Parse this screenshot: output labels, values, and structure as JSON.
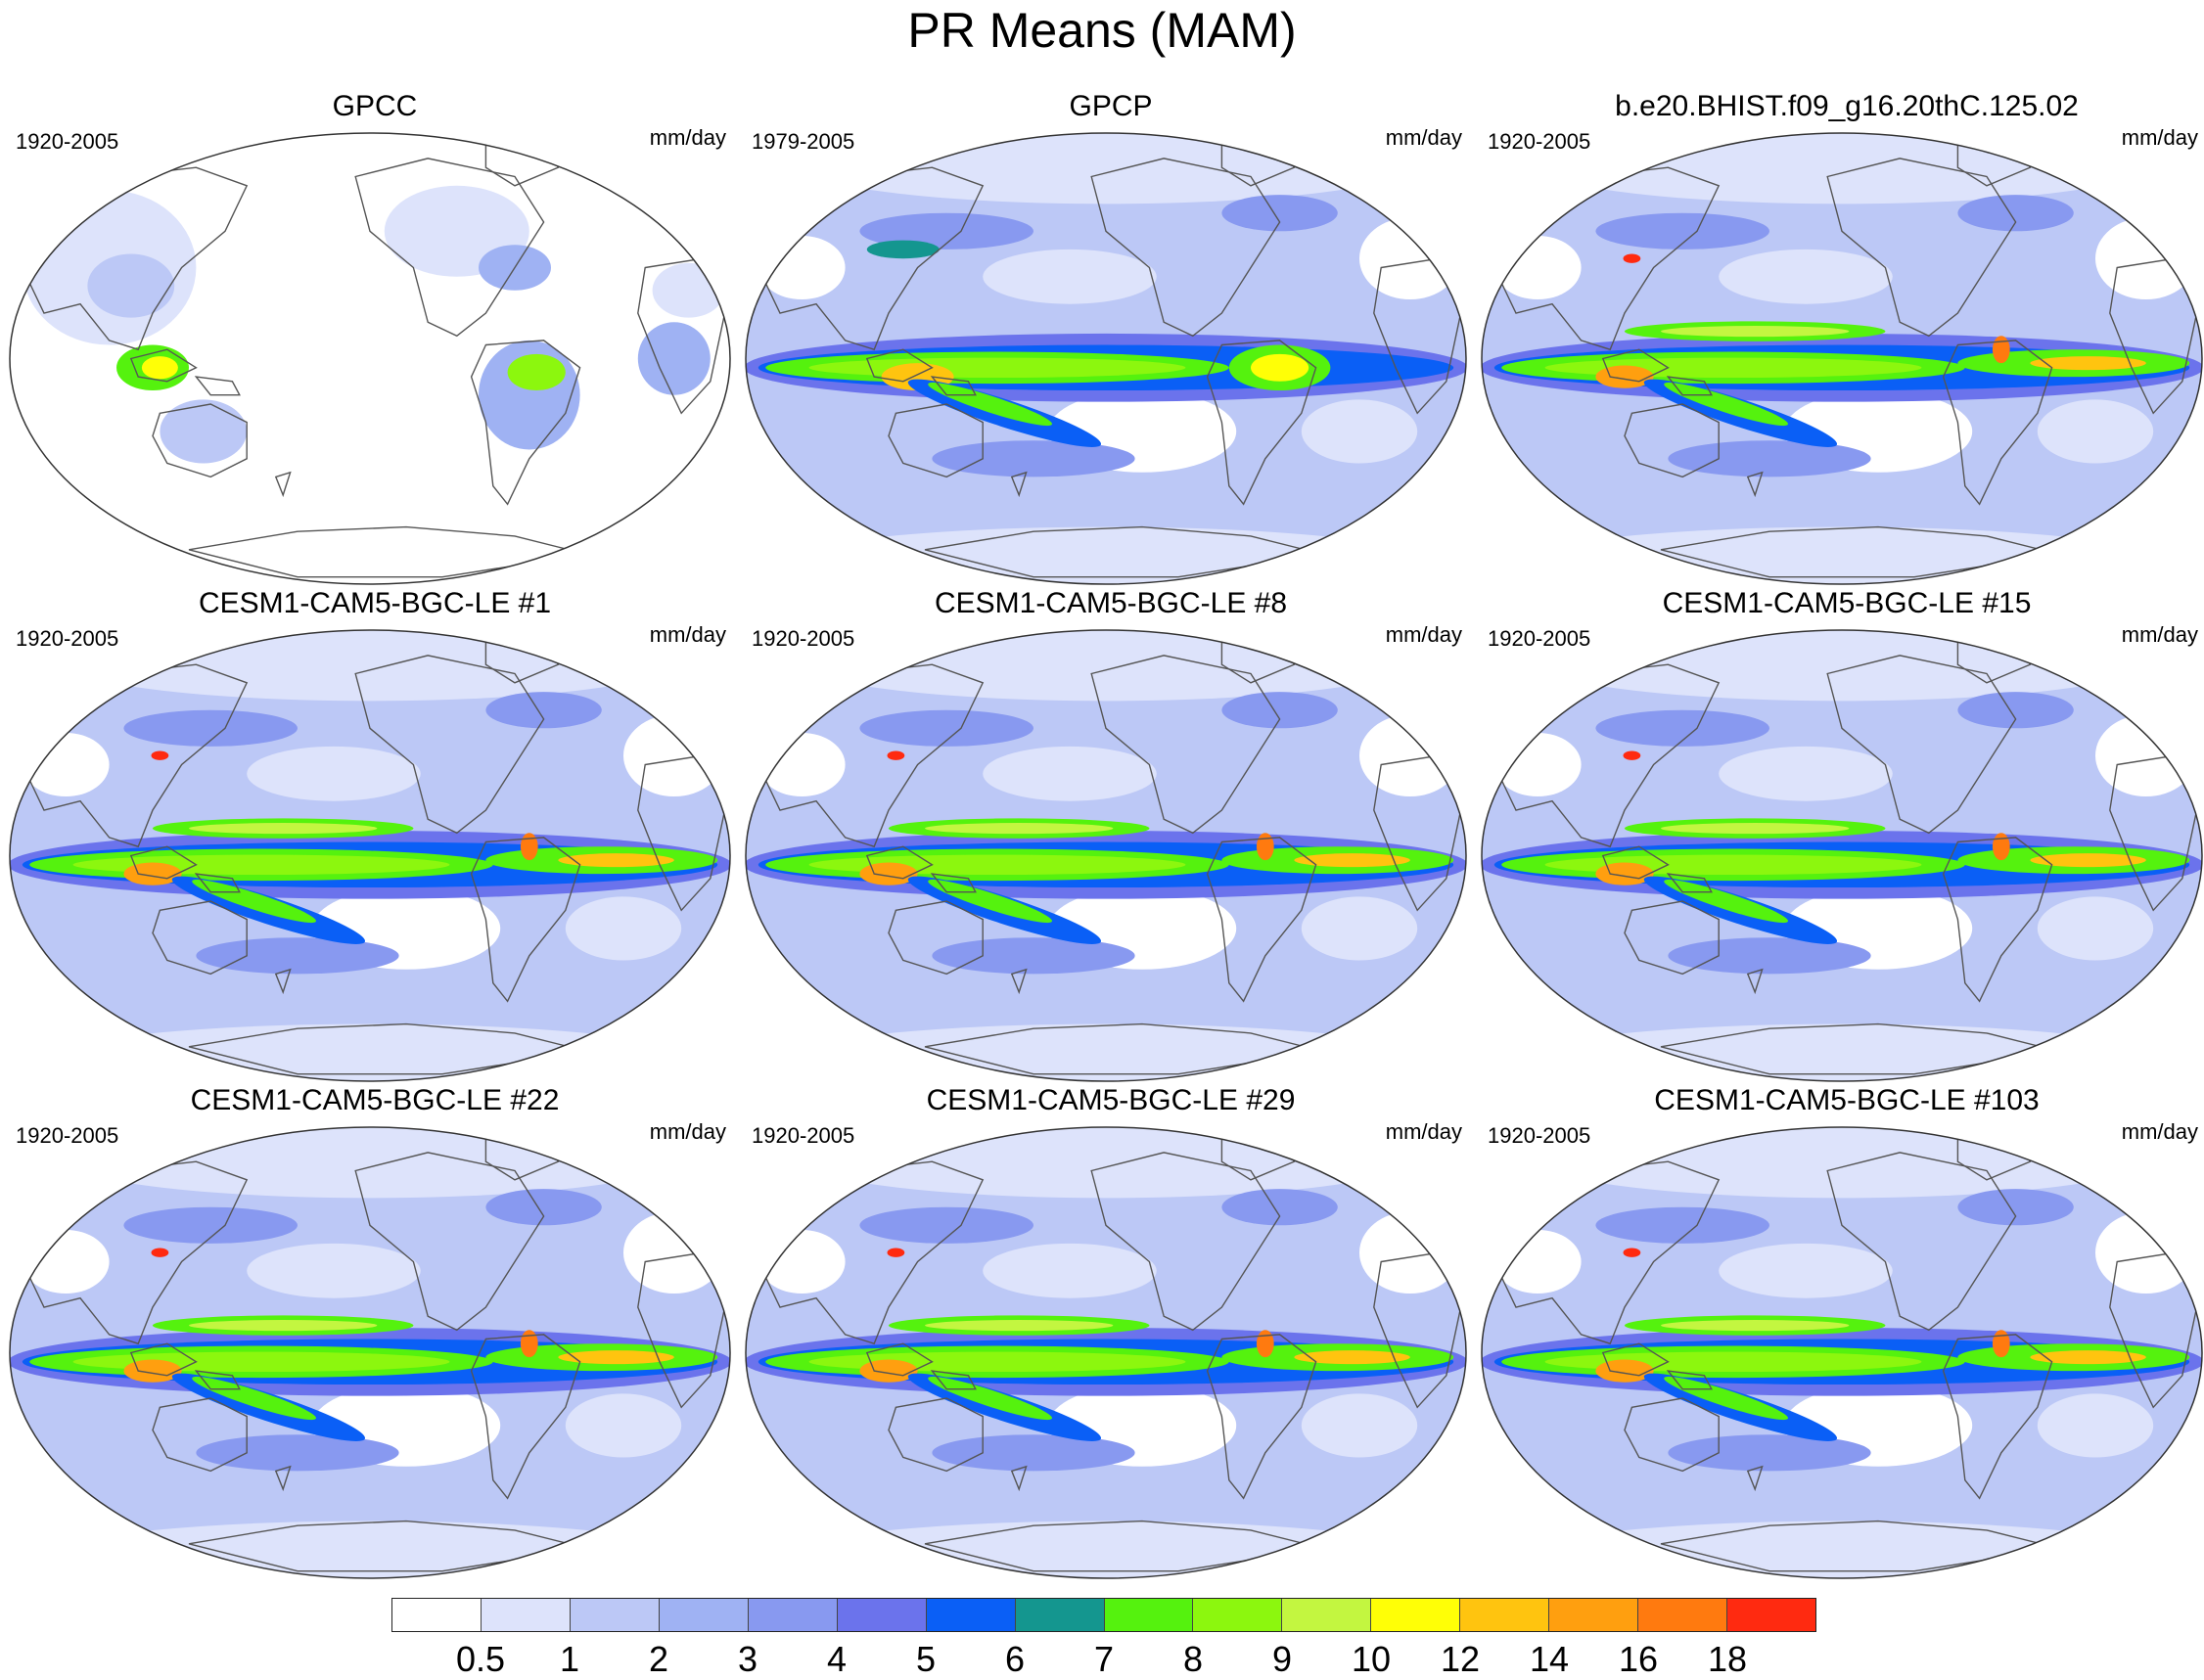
{
  "title": "PR Means (MAM)",
  "panels": [
    {
      "title": "GPCC",
      "left_label": "1920-2005",
      "right_label": "mm/day",
      "kind": "obs_land"
    },
    {
      "title": "GPCP",
      "left_label": "1979-2005",
      "right_label": "mm/day",
      "kind": "obs_global"
    },
    {
      "title": "b.e20.BHIST.f09_g16.20thC.125.02",
      "left_label": "1920-2005",
      "right_label": "mm/day",
      "kind": "model"
    },
    {
      "title": "CESM1-CAM5-BGC-LE #1",
      "left_label": "1920-2005",
      "right_label": "mm/day",
      "kind": "model"
    },
    {
      "title": "CESM1-CAM5-BGC-LE #8",
      "left_label": "1920-2005",
      "right_label": "mm/day",
      "kind": "model"
    },
    {
      "title": "CESM1-CAM5-BGC-LE #15",
      "left_label": "1920-2005",
      "right_label": "mm/day",
      "kind": "model"
    },
    {
      "title": "CESM1-CAM5-BGC-LE #22",
      "left_label": "1920-2005",
      "right_label": "mm/day",
      "kind": "model"
    },
    {
      "title": "CESM1-CAM5-BGC-LE #29",
      "left_label": "1920-2005",
      "right_label": "mm/day",
      "kind": "model"
    },
    {
      "title": "CESM1-CAM5-BGC-LE #103",
      "left_label": "1920-2005",
      "right_label": "mm/day",
      "kind": "model"
    }
  ],
  "colorbar": {
    "labels": [
      "0.5",
      "1",
      "2",
      "3",
      "4",
      "5",
      "6",
      "7",
      "8",
      "9",
      "10",
      "12",
      "14",
      "16",
      "18"
    ],
    "colors": [
      "#ffffff",
      "#dde3fb",
      "#bcc8f6",
      "#9fb2f3",
      "#8899f0",
      "#6b73ec",
      "#0a5ff6",
      "#14968f",
      "#55f20e",
      "#8cf70e",
      "#c3f640",
      "#ffff06",
      "#ffc40f",
      "#ff9f0f",
      "#ff7a0f",
      "#ff2a10"
    ]
  }
}
